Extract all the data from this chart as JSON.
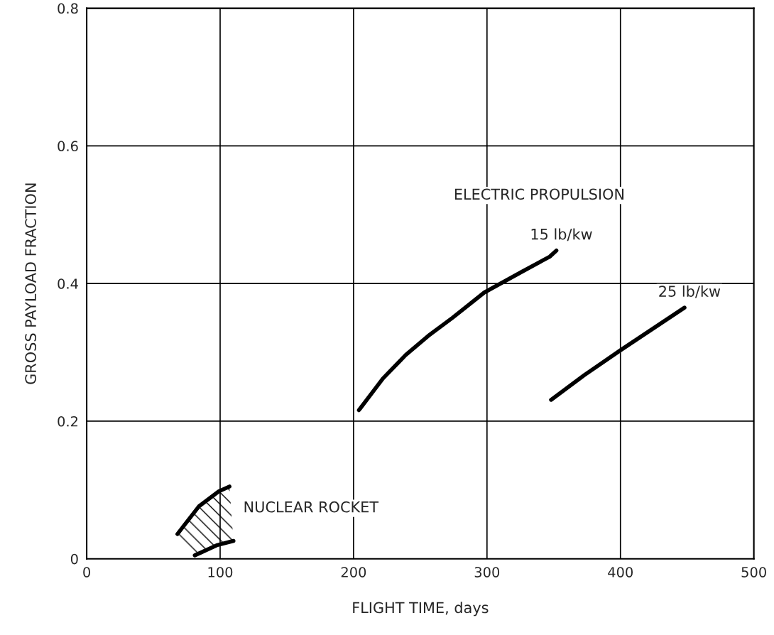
{
  "chart_data": {
    "type": "line",
    "xlabel": "FLIGHT TIME, days",
    "ylabel": "GROSS PAYLOAD FRACTION",
    "xlim": [
      0,
      500
    ],
    "xticks": [
      0,
      100,
      200,
      300,
      400,
      500
    ],
    "ylim": [
      0,
      0.8
    ],
    "yticks": [
      {
        "value": 0,
        "label": "0"
      },
      0.2,
      0.4,
      0.6,
      0.8
    ],
    "grid": true,
    "legend": false,
    "marker": "none",
    "line_style": "solid",
    "annotations": [
      "ELECTRIC PROPULSION"
    ],
    "series": [
      {
        "name": "15 lb/kw",
        "color": "#000000",
        "x": [
          204,
          222,
          239,
          256,
          274,
          298,
          326,
          347,
          352
        ],
        "values": [
          0.216,
          0.262,
          0.296,
          0.324,
          0.35,
          0.387,
          0.417,
          0.439,
          0.448
        ]
      },
      {
        "name": "25 lb/kw",
        "color": "#000000",
        "x": [
          348,
          373,
          400,
          448
        ],
        "values": [
          0.231,
          0.267,
          0.303,
          0.365
        ]
      },
      {
        "name": "NUCLEAR ROCKET",
        "color": "#000000",
        "x": [
          68,
          84,
          99,
          107
        ],
        "values": [
          0.036,
          0.076,
          0.098,
          0.105
        ]
      },
      {
        "color": "#000000",
        "x": [
          81,
          98,
          110
        ],
        "values": [
          0.005,
          0.02,
          0.026
        ]
      }
    ]
  }
}
